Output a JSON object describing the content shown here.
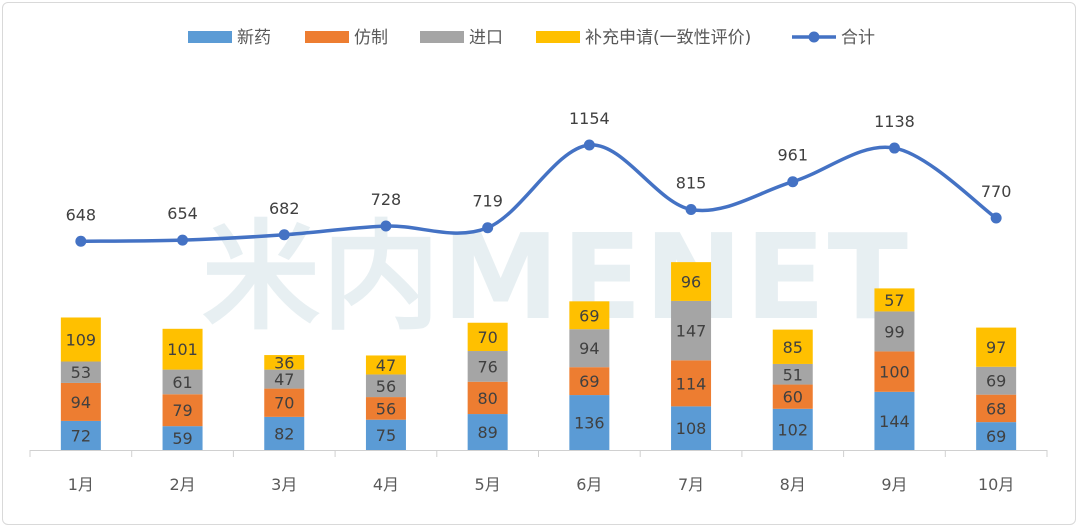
{
  "watermark": "米内MENET",
  "chart_data": {
    "type": "bar",
    "stacked": true,
    "categories": [
      "1月",
      "2月",
      "3月",
      "4月",
      "5月",
      "6月",
      "7月",
      "8月",
      "9月",
      "10月"
    ],
    "series": [
      {
        "name": "新药",
        "kind": "bar",
        "color": "#5B9BD5",
        "values": [
          72,
          59,
          82,
          75,
          89,
          136,
          108,
          102,
          144,
          69
        ]
      },
      {
        "name": "仿制",
        "kind": "bar",
        "color": "#ED7D31",
        "values": [
          94,
          79,
          70,
          56,
          80,
          69,
          114,
          60,
          100,
          68
        ]
      },
      {
        "name": "进口",
        "kind": "bar",
        "color": "#A5A5A5",
        "values": [
          53,
          61,
          47,
          56,
          76,
          94,
          147,
          51,
          99,
          69
        ]
      },
      {
        "name": "补充申请(一致性评价)",
        "kind": "bar",
        "color": "#FFC000",
        "values": [
          109,
          101,
          36,
          47,
          70,
          69,
          96,
          85,
          57,
          97
        ]
      },
      {
        "name": "合计",
        "kind": "line",
        "color": "#4472C4",
        "values": [
          648,
          654,
          682,
          728,
          719,
          1154,
          815,
          961,
          1138,
          770
        ]
      }
    ],
    "legend_position": "top",
    "grid": false
  }
}
